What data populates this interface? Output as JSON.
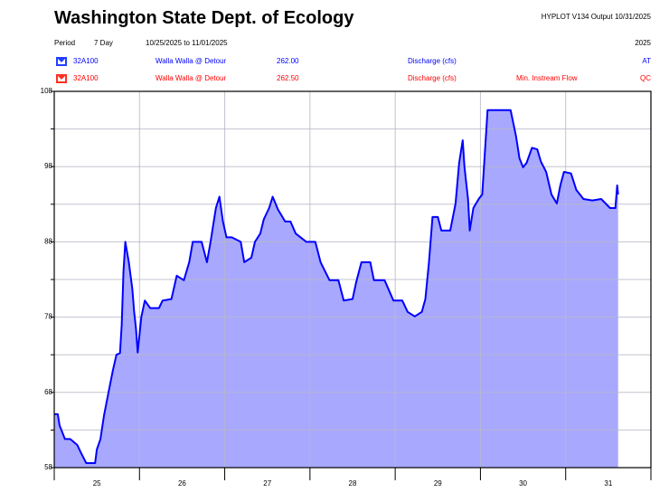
{
  "header": {
    "title": "Washington State Dept. of Ecology",
    "version_output": "HYPLOT V134  Output 10/31/2025",
    "period_label": "Period",
    "period_value": "7 Day",
    "date_range": "10/25/2025  to  11/01/2025",
    "year": "2025"
  },
  "series_legend": [
    {
      "station": "32A100",
      "name": "Walla Walla @ Detour",
      "code": "262.00",
      "parameter": "Discharge (cfs)",
      "extra": "",
      "flag": "AT",
      "color": "#0000ff",
      "icon": "hydrograph-icon"
    },
    {
      "station": "32A100",
      "name": "Walla Walla @ Detour",
      "code": "262.50",
      "parameter": "Discharge (cfs)",
      "extra": "Min. Instream Flow",
      "flag": "QC",
      "color": "#ff0000",
      "icon": "hydrograph-icon"
    }
  ],
  "chart_data": {
    "type": "area",
    "xlabel": "",
    "ylabel": "",
    "ylim": [
      58,
      108
    ],
    "yticks": [
      "108",
      "98",
      "88",
      "78",
      "68",
      "58"
    ],
    "xticks": [
      "25",
      "26",
      "27",
      "28",
      "29",
      "30",
      "31"
    ],
    "xlim": [
      "10/25 00:00",
      "11/01 00:00"
    ],
    "grid": true,
    "line_color": "#0000ff",
    "fill_color": "#a8a8ff",
    "series": [
      {
        "points": [
          [
            "10/25 00:00",
            65.1
          ],
          [
            "10/25 01:00",
            65.1
          ],
          [
            "10/25 01:30",
            63.6
          ],
          [
            "10/25 02:00",
            63.0
          ],
          [
            "10/25 03:00",
            61.8
          ],
          [
            "10/25 04:30",
            61.8
          ],
          [
            "10/25 06:30",
            61.0
          ],
          [
            "10/25 07:30",
            60.0
          ],
          [
            "10/25 09:00",
            58.6
          ],
          [
            "10/25 11:30",
            58.6
          ],
          [
            "10/25 12:00",
            60.4
          ],
          [
            "10/25 13:00",
            61.8
          ],
          [
            "10/25 14:00",
            64.9
          ],
          [
            "10/25 15:00",
            67.3
          ],
          [
            "10/25 16:30",
            70.9
          ],
          [
            "10/25 17:30",
            73.0
          ],
          [
            "10/25 18:30",
            73.2
          ],
          [
            "10/25 19:00",
            76.9
          ],
          [
            "10/25 19:30",
            84.1
          ],
          [
            "10/25 20:00",
            88.0
          ],
          [
            "10/25 21:00",
            85.3
          ],
          [
            "10/25 22:00",
            81.7
          ],
          [
            "10/25 22:30",
            78.7
          ],
          [
            "10/25 23:00",
            76.5
          ],
          [
            "10/25 23:30",
            73.3
          ],
          [
            "10/26 00:30",
            78.0
          ],
          [
            "10/26 01:30",
            80.2
          ],
          [
            "10/26 03:00",
            79.2
          ],
          [
            "10/26 05:30",
            79.2
          ],
          [
            "10/26 06:30",
            80.2
          ],
          [
            "10/26 09:00",
            80.4
          ],
          [
            "10/26 10:30",
            83.5
          ],
          [
            "10/26 12:30",
            82.9
          ],
          [
            "10/26 14:00",
            85.3
          ],
          [
            "10/26 15:00",
            88.0
          ],
          [
            "10/26 17:30",
            88.0
          ],
          [
            "10/26 19:00",
            85.3
          ],
          [
            "10/26 20:00",
            88.0
          ],
          [
            "10/26 21:30",
            92.5
          ],
          [
            "10/26 22:30",
            94.0
          ],
          [
            "10/26 23:30",
            90.7
          ],
          [
            "10/27 00:30",
            88.6
          ],
          [
            "10/27 02:00",
            88.6
          ],
          [
            "10/27 04:30",
            88.0
          ],
          [
            "10/27 05:30",
            85.3
          ],
          [
            "10/27 07:30",
            85.9
          ],
          [
            "10/27 08:30",
            88.0
          ],
          [
            "10/27 10:00",
            89.1
          ],
          [
            "10/27 11:00",
            91.0
          ],
          [
            "10/27 12:30",
            92.5
          ],
          [
            "10/27 13:30",
            94.0
          ],
          [
            "10/27 15:00",
            92.3
          ],
          [
            "10/27 17:00",
            90.7
          ],
          [
            "10/27 18:30",
            90.7
          ],
          [
            "10/27 20:00",
            89.1
          ],
          [
            "10/27 23:00",
            88.0
          ],
          [
            "10/28 01:30",
            88.0
          ],
          [
            "10/28 03:00",
            85.3
          ],
          [
            "10/28 05:30",
            82.9
          ],
          [
            "10/28 08:00",
            82.9
          ],
          [
            "10/28 09:30",
            80.2
          ],
          [
            "10/28 12:00",
            80.4
          ],
          [
            "10/28 13:00",
            82.6
          ],
          [
            "10/28 14:30",
            85.3
          ],
          [
            "10/28 17:00",
            85.3
          ],
          [
            "10/28 18:00",
            82.9
          ],
          [
            "10/28 21:00",
            82.9
          ],
          [
            "10/28 23:30",
            80.2
          ],
          [
            "10/29 02:00",
            80.2
          ],
          [
            "10/29 03:30",
            78.7
          ],
          [
            "10/29 05:30",
            78.1
          ],
          [
            "10/29 07:30",
            78.7
          ],
          [
            "10/29 08:30",
            80.4
          ],
          [
            "10/29 09:30",
            85.3
          ],
          [
            "10/29 10:30",
            91.3
          ],
          [
            "10/29 12:00",
            91.3
          ],
          [
            "10/29 13:00",
            89.5
          ],
          [
            "10/29 15:30",
            89.5
          ],
          [
            "10/29 17:00",
            93.1
          ],
          [
            "10/29 18:00",
            98.5
          ],
          [
            "10/29 19:00",
            101.5
          ],
          [
            "10/29 19:30",
            97.9
          ],
          [
            "10/29 20:30",
            93.7
          ],
          [
            "10/29 21:00",
            89.5
          ],
          [
            "10/29 22:00",
            92.5
          ],
          [
            "10/29 23:30",
            93.7
          ],
          [
            "10/30 00:30",
            94.3
          ],
          [
            "10/30 02:00",
            105.5
          ],
          [
            "10/30 03:30",
            105.5
          ],
          [
            "10/30 08:30",
            105.5
          ],
          [
            "10/30 10:00",
            102.1
          ],
          [
            "10/30 11:00",
            99.1
          ],
          [
            "10/30 12:00",
            97.9
          ],
          [
            "10/30 13:00",
            98.5
          ],
          [
            "10/30 14:30",
            100.5
          ],
          [
            "10/30 16:00",
            100.3
          ],
          [
            "10/30 17:00",
            98.7
          ],
          [
            "10/30 18:30",
            97.3
          ],
          [
            "10/30 20:00",
            94.3
          ],
          [
            "10/30 21:30",
            93.1
          ],
          [
            "10/30 22:30",
            95.5
          ],
          [
            "10/30 23:30",
            97.3
          ],
          [
            "10/31 01:30",
            97.1
          ],
          [
            "10/31 03:00",
            94.9
          ],
          [
            "10/31 05:00",
            93.7
          ],
          [
            "10/31 07:30",
            93.5
          ],
          [
            "10/31 10:00",
            93.7
          ],
          [
            "10/31 12:30",
            92.5
          ],
          [
            "10/31 14:00",
            92.5
          ],
          [
            "10/31 14:30",
            95.5
          ],
          [
            "10/31 14:45",
            94.3
          ]
        ]
      }
    ]
  }
}
